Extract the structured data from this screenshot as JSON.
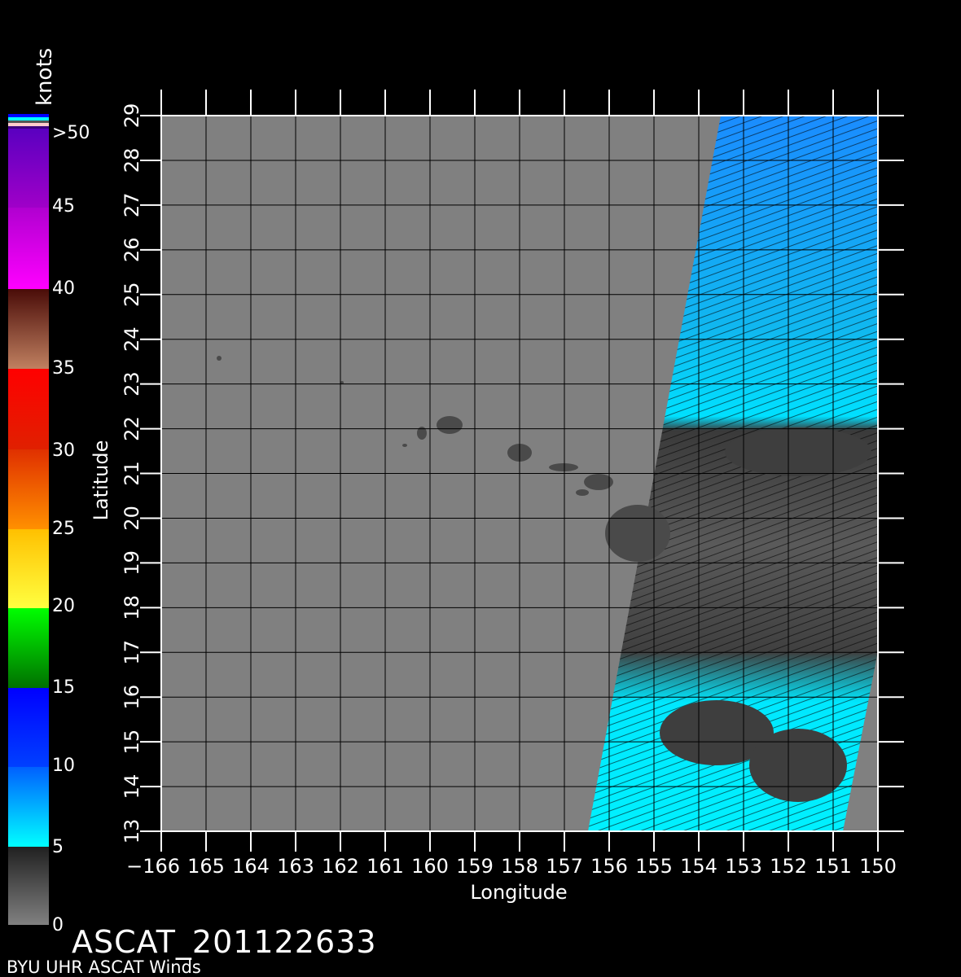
{
  "colorbar": {
    "unit": "knots",
    "labels": [
      "0",
      "5",
      "10",
      "15",
      "20",
      "25",
      "30",
      "35",
      "40",
      "45",
      ">50"
    ],
    "colors": {
      "calm": "#808080",
      "cyan": "#00ffff",
      "blue": "#0000ff",
      "green": "#00ff00",
      "yellow": "#ffff00",
      "orange": "#ff8000",
      "red": "#ff0000",
      "brown": "#5a1a10",
      "magenta": "#ff00ff",
      "purple": "#5a00c0"
    }
  },
  "map": {
    "x_label": "Longitude",
    "y_label": "Latitude",
    "lon_range": [
      -166,
      -150
    ],
    "lat_range": [
      13,
      29
    ],
    "lon_ticks": [
      "−166",
      "165",
      "164",
      "163",
      "162",
      "161",
      "160",
      "159",
      "158",
      "157",
      "156",
      "155",
      "154",
      "153",
      "152",
      "151",
      "150"
    ],
    "lat_ticks": [
      "13",
      "14",
      "15",
      "16",
      "17",
      "18",
      "19",
      "20",
      "21",
      "22",
      "23",
      "24",
      "25",
      "26",
      "27",
      "28",
      "29"
    ],
    "grid": true,
    "land_color": "#4a4a4a",
    "background_color": "#808080"
  },
  "footer": {
    "title": "ASCAT_201122633",
    "subtitle": "BYU UHR ASCAT Winds"
  }
}
